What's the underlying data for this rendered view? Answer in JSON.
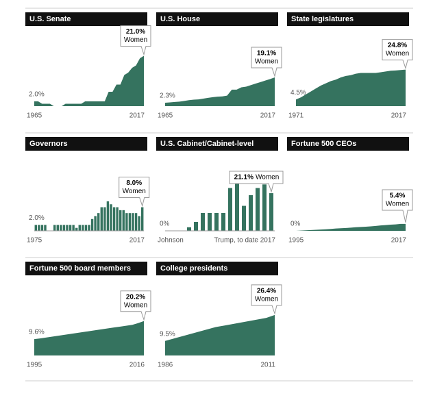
{
  "chart_data": [
    {
      "type": "area",
      "title": "U.S. Senate",
      "x_start": "1965",
      "x_end": "2017",
      "color": "#35735f",
      "ylim": [
        0,
        32
      ],
      "callout": "Women",
      "values": [
        2,
        2,
        1,
        1,
        1,
        0,
        0,
        0,
        1,
        1,
        1,
        1,
        1,
        2,
        2,
        2,
        2,
        2,
        2,
        6,
        6,
        9,
        9,
        13,
        14,
        16,
        17,
        20,
        21
      ],
      "value_labels": [
        "2.0%",
        null,
        null,
        null,
        null,
        null,
        null,
        null,
        null,
        null,
        null,
        null,
        null,
        null,
        null,
        null,
        null,
        null,
        null,
        null,
        null,
        null,
        null,
        null,
        null,
        null,
        null,
        null,
        "21.0%"
      ]
    },
    {
      "type": "area",
      "title": "U.S. House",
      "x_start": "1965",
      "x_end": "2017",
      "color": "#35735f",
      "ylim": [
        0,
        51
      ],
      "callout": "Women",
      "values": [
        2.3,
        2.5,
        2.8,
        3,
        3.5,
        4,
        4.3,
        4.5,
        5,
        5.5,
        6,
        6.3,
        6.5,
        7,
        11,
        11,
        12.5,
        13,
        14,
        15,
        16,
        17,
        18,
        19.1
      ],
      "value_labels": [
        "2.3%",
        null,
        null,
        null,
        null,
        null,
        null,
        null,
        null,
        null,
        null,
        null,
        null,
        null,
        null,
        null,
        null,
        null,
        null,
        null,
        null,
        null,
        null,
        "19.1%"
      ]
    },
    {
      "type": "area",
      "title": "State legislatures",
      "x_start": "1971",
      "x_end": "2017",
      "color": "#35735f",
      "ylim": [
        0,
        52
      ],
      "callout": "Women",
      "values": [
        4.5,
        6,
        8,
        10,
        12,
        14,
        15.5,
        17,
        18,
        19.5,
        20.5,
        21,
        22,
        22.5,
        22.5,
        22.5,
        22.5,
        23,
        23.5,
        24,
        24.2,
        24.5,
        24.8
      ],
      "value_labels": [
        "4.5%",
        null,
        null,
        null,
        null,
        null,
        null,
        null,
        null,
        null,
        null,
        null,
        null,
        null,
        null,
        null,
        null,
        null,
        null,
        null,
        null,
        null,
        "24.8%"
      ]
    },
    {
      "type": "bar",
      "title": "Governors",
      "x_start": "1975",
      "x_end": "2017",
      "color": "#35735f",
      "ylim": [
        0,
        26
      ],
      "callout": "Women",
      "values": [
        2,
        2,
        2,
        2,
        0,
        0,
        2,
        2,
        2,
        2,
        2,
        2,
        2,
        1,
        2,
        2,
        2,
        2,
        4,
        5,
        6,
        8,
        8,
        10,
        9,
        8,
        8,
        7,
        7,
        6,
        6,
        6,
        6,
        5,
        8
      ],
      "value_labels": [
        "2.0%",
        null,
        null,
        null,
        null,
        null,
        null,
        null,
        null,
        null,
        null,
        null,
        null,
        null,
        null,
        null,
        null,
        null,
        null,
        null,
        null,
        null,
        null,
        null,
        null,
        null,
        null,
        null,
        null,
        null,
        null,
        null,
        null,
        null,
        "8.0%"
      ]
    },
    {
      "type": "bar",
      "title": "U.S. Cabinet/Cabinet-level",
      "x_start": "Johnson",
      "x_end": "Trump, to date 2017",
      "color": "#35735f",
      "ylim": [
        0,
        43
      ],
      "callout": "Women",
      "callout_layout": "inline",
      "values": [
        0,
        0,
        0,
        2,
        5,
        10,
        10,
        10,
        10,
        24,
        28,
        14,
        20,
        24,
        26,
        21.1
      ],
      "value_labels": [
        "0%",
        null,
        null,
        null,
        null,
        null,
        null,
        null,
        null,
        null,
        null,
        null,
        null,
        null,
        null,
        "21.1%"
      ]
    },
    {
      "type": "area",
      "title": "Fortune 500 CEOs",
      "x_start": "1995",
      "x_end": "2017",
      "color": "#35735f",
      "ylim": [
        0,
        60
      ],
      "callout": "Women",
      "values": [
        0,
        0.2,
        0.4,
        0.6,
        0.8,
        1,
        1.2,
        1.5,
        1.8,
        2,
        2.2,
        2.5,
        2.8,
        3,
        3.2,
        3.5,
        3.8,
        4.2,
        4.5,
        4.8,
        5,
        5.4,
        5.4
      ],
      "value_labels": [
        "0%",
        null,
        null,
        null,
        null,
        null,
        null,
        null,
        null,
        null,
        null,
        null,
        null,
        null,
        null,
        null,
        null,
        null,
        null,
        null,
        null,
        null,
        "5.4%"
      ]
    },
    {
      "type": "area",
      "title": "Fortune 500 board members",
      "x_start": "1995",
      "x_end": "2016",
      "color": "#35735f",
      "ylim": [
        0,
        45
      ],
      "callout": "Women",
      "values": [
        9.6,
        10,
        10.5,
        11,
        11.5,
        12,
        12.5,
        13,
        13.5,
        14,
        14.5,
        15,
        15.5,
        16,
        16.5,
        17,
        17.5,
        18,
        19,
        20.2
      ],
      "value_labels": [
        "9.6%",
        null,
        null,
        null,
        null,
        null,
        null,
        null,
        null,
        null,
        null,
        null,
        null,
        null,
        null,
        null,
        null,
        null,
        null,
        "20.2%"
      ]
    },
    {
      "type": "area",
      "title": "College presidents",
      "x_start": "1986",
      "x_end": "2011",
      "color": "#35735f",
      "ylim": [
        0,
        50
      ],
      "callout": "Women",
      "values": [
        9.5,
        11,
        12.5,
        14,
        15.5,
        17,
        18.5,
        19.5,
        20.5,
        21.5,
        22.5,
        23.5,
        24.5,
        26.4
      ],
      "value_labels": [
        "9.5%",
        null,
        null,
        null,
        null,
        null,
        null,
        null,
        null,
        null,
        null,
        null,
        null,
        "26.4%"
      ]
    }
  ]
}
